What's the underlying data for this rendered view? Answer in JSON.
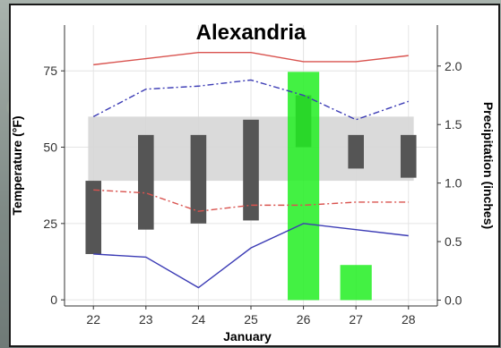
{
  "chart_data": {
    "type": "bar",
    "title": "Alexandria",
    "xlabel": "January",
    "ylabel": "Temperature (°F)",
    "y2label": "Precipitation (inches)",
    "x": [
      22,
      23,
      24,
      25,
      26,
      27,
      28
    ],
    "ylim": [
      -2,
      90
    ],
    "y2lim": [
      -0.05,
      2.35
    ],
    "yticks": [
      0,
      25,
      50,
      75
    ],
    "y2ticks": [
      "0.0",
      "0.5",
      "1.0",
      "1.5",
      "2.0"
    ],
    "normal_band": {
      "low": 39,
      "high": 60,
      "color": "#d6d6d6"
    },
    "temp_range_bars": [
      {
        "day": 22,
        "low": 15,
        "high": 39
      },
      {
        "day": 23,
        "low": 23,
        "high": 54
      },
      {
        "day": 24,
        "low": 25,
        "high": 54
      },
      {
        "day": 25,
        "low": 26,
        "high": 59
      },
      {
        "day": 26,
        "low": 50,
        "high": 67
      },
      {
        "day": 27,
        "low": 43,
        "high": 54
      },
      {
        "day": 28,
        "low": 40,
        "high": 54
      }
    ],
    "precip_bars": [
      {
        "day": 26,
        "value": 1.95
      },
      {
        "day": 27,
        "value": 0.3
      }
    ],
    "series": [
      {
        "style": "solid",
        "color": "#d9534f",
        "values": [
          77,
          79,
          81,
          81,
          78,
          78,
          80
        ]
      },
      {
        "style": "dashdot",
        "color": "#3b3bb5",
        "values": [
          60,
          69,
          70,
          72,
          67,
          59,
          65
        ]
      },
      {
        "style": "dashdot",
        "color": "#d9534f",
        "values": [
          36,
          35,
          29,
          31,
          31,
          32,
          32
        ]
      },
      {
        "style": "solid",
        "color": "#3b3bb5",
        "values": [
          15,
          14,
          4,
          17,
          25,
          23,
          21
        ]
      }
    ],
    "bar_color": "#555555",
    "precip_color": "#22ee22"
  }
}
